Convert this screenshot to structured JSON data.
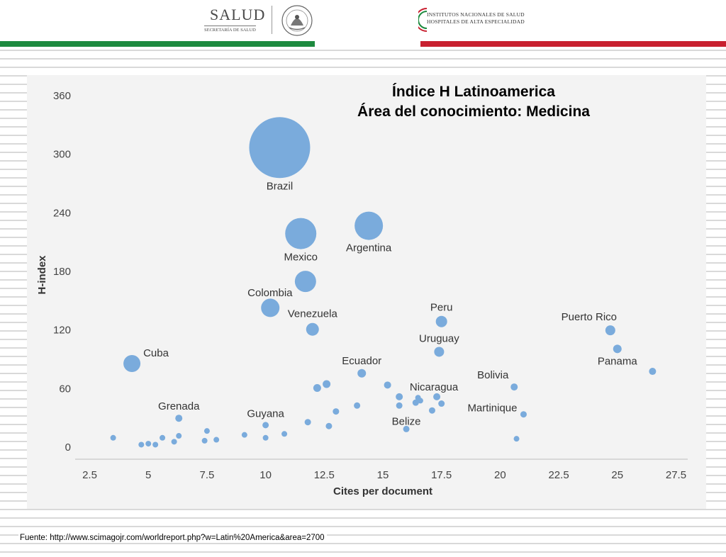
{
  "header": {
    "salud_logo": {
      "word": "SALUD",
      "sub": "SECRETARÍA DE SALUD",
      "seal_text": "ESTADOS UNIDOS MEXICANOS"
    },
    "institutes_logo": {
      "line1": "INSTITUTOS NACIONALES DE SALUD",
      "line2": "HOSPITALES DE ALTA ESPECIALIDAD"
    },
    "colors": {
      "green": "#1d8a3f",
      "red": "#c8202f"
    }
  },
  "chart_data": {
    "type": "scatter",
    "title": [
      "Índice H Latinoamerica",
      "Área del conocimiento: Medicina"
    ],
    "xlabel": "Cites per document",
    "ylabel": "H-index",
    "xlim": [
      2.0,
      28.0
    ],
    "ylim": [
      -10,
      370
    ],
    "xticks": [
      2.5,
      5,
      7.5,
      10,
      12.5,
      15,
      17.5,
      20,
      22.5,
      25,
      27.5
    ],
    "xtick_labels": [
      "2.5",
      "5",
      "7.5",
      "10",
      "12.5",
      "15",
      "17.5",
      "20",
      "22.5",
      "25",
      "27.5"
    ],
    "yticks": [
      0,
      60,
      120,
      180,
      240,
      300,
      360
    ],
    "ytick_labels": [
      "0",
      "60",
      "120",
      "180",
      "240",
      "300",
      "360"
    ],
    "grid": false,
    "point_color": "#7aabdc",
    "points": [
      {
        "label": "Brazil",
        "x": 10.6,
        "y": 306,
        "size": 43
      },
      {
        "label": "Mexico",
        "x": 11.5,
        "y": 218,
        "size": 22
      },
      {
        "label": "Argentina",
        "x": 14.4,
        "y": 226,
        "size": 20
      },
      {
        "label": "Colombia",
        "x": 11.7,
        "y": 169,
        "size": 15
      },
      {
        "label": "Venezuela",
        "x": 12.0,
        "y": 120,
        "size": 9
      },
      {
        "label": "",
        "x": 10.2,
        "y": 142,
        "size": 13
      },
      {
        "label": "Cuba",
        "x": 4.3,
        "y": 85,
        "size": 12
      },
      {
        "label": "Peru",
        "x": 17.5,
        "y": 128,
        "size": 8
      },
      {
        "label": "Uruguay",
        "x": 17.4,
        "y": 97,
        "size": 7
      },
      {
        "label": "Ecuador",
        "x": 14.1,
        "y": 75,
        "size": 6
      },
      {
        "label": "Puerto Rico",
        "x": 24.7,
        "y": 119,
        "size": 7
      },
      {
        "label": "Panama",
        "x": 25.0,
        "y": 100,
        "size": 6
      },
      {
        "label": "",
        "x": 26.5,
        "y": 77,
        "size": 5
      },
      {
        "label": "Bolivia",
        "x": 20.6,
        "y": 61,
        "size": 5
      },
      {
        "label": "Martinique",
        "x": 21.0,
        "y": 33,
        "size": 4.5
      },
      {
        "label": "Nicaragua",
        "x": 17.3,
        "y": 51,
        "size": 5
      },
      {
        "label": "Belize",
        "x": 16.0,
        "y": 18,
        "size": 4.5
      },
      {
        "label": "Grenada",
        "x": 6.3,
        "y": 29,
        "size": 5
      },
      {
        "label": "Guyana",
        "x": 10.0,
        "y": 22,
        "size": 4.5
      },
      {
        "label": "",
        "x": 12.2,
        "y": 60,
        "size": 5.5
      },
      {
        "label": "",
        "x": 12.6,
        "y": 64,
        "size": 5.5
      },
      {
        "label": "",
        "x": 15.2,
        "y": 63,
        "size": 5
      },
      {
        "label": "",
        "x": 15.7,
        "y": 51,
        "size": 5
      },
      {
        "label": "",
        "x": 16.4,
        "y": 45,
        "size": 4.5
      },
      {
        "label": "",
        "x": 16.5,
        "y": 50,
        "size": 4
      },
      {
        "label": "",
        "x": 16.6,
        "y": 47,
        "size": 4
      },
      {
        "label": "",
        "x": 17.5,
        "y": 44,
        "size": 4.5
      },
      {
        "label": "",
        "x": 17.1,
        "y": 37,
        "size": 4.5
      },
      {
        "label": "",
        "x": 15.7,
        "y": 42,
        "size": 4.5
      },
      {
        "label": "",
        "x": 13.9,
        "y": 42,
        "size": 4.5
      },
      {
        "label": "",
        "x": 13.0,
        "y": 36,
        "size": 4.5
      },
      {
        "label": "",
        "x": 11.8,
        "y": 25,
        "size": 4.5
      },
      {
        "label": "",
        "x": 12.7,
        "y": 21,
        "size": 4.5
      },
      {
        "label": "",
        "x": 10.8,
        "y": 13,
        "size": 4
      },
      {
        "label": "",
        "x": 10.0,
        "y": 9,
        "size": 4
      },
      {
        "label": "",
        "x": 9.1,
        "y": 12,
        "size": 4
      },
      {
        "label": "",
        "x": 7.9,
        "y": 7,
        "size": 4
      },
      {
        "label": "",
        "x": 7.5,
        "y": 16,
        "size": 4
      },
      {
        "label": "",
        "x": 7.4,
        "y": 6,
        "size": 4
      },
      {
        "label": "",
        "x": 6.3,
        "y": 11,
        "size": 4
      },
      {
        "label": "",
        "x": 6.1,
        "y": 5,
        "size": 4
      },
      {
        "label": "",
        "x": 5.6,
        "y": 9,
        "size": 4
      },
      {
        "label": "",
        "x": 5.3,
        "y": 2,
        "size": 4
      },
      {
        "label": "",
        "x": 5.0,
        "y": 3,
        "size": 4
      },
      {
        "label": "",
        "x": 4.7,
        "y": 2,
        "size": 4
      },
      {
        "label": "",
        "x": 3.5,
        "y": 9,
        "size": 4
      },
      {
        "label": "",
        "x": 20.7,
        "y": 8,
        "size": 4
      }
    ]
  },
  "source": "Fuente: http://www.scimagojr.com/worldreport.php?w=Latin%20America&area=2700"
}
